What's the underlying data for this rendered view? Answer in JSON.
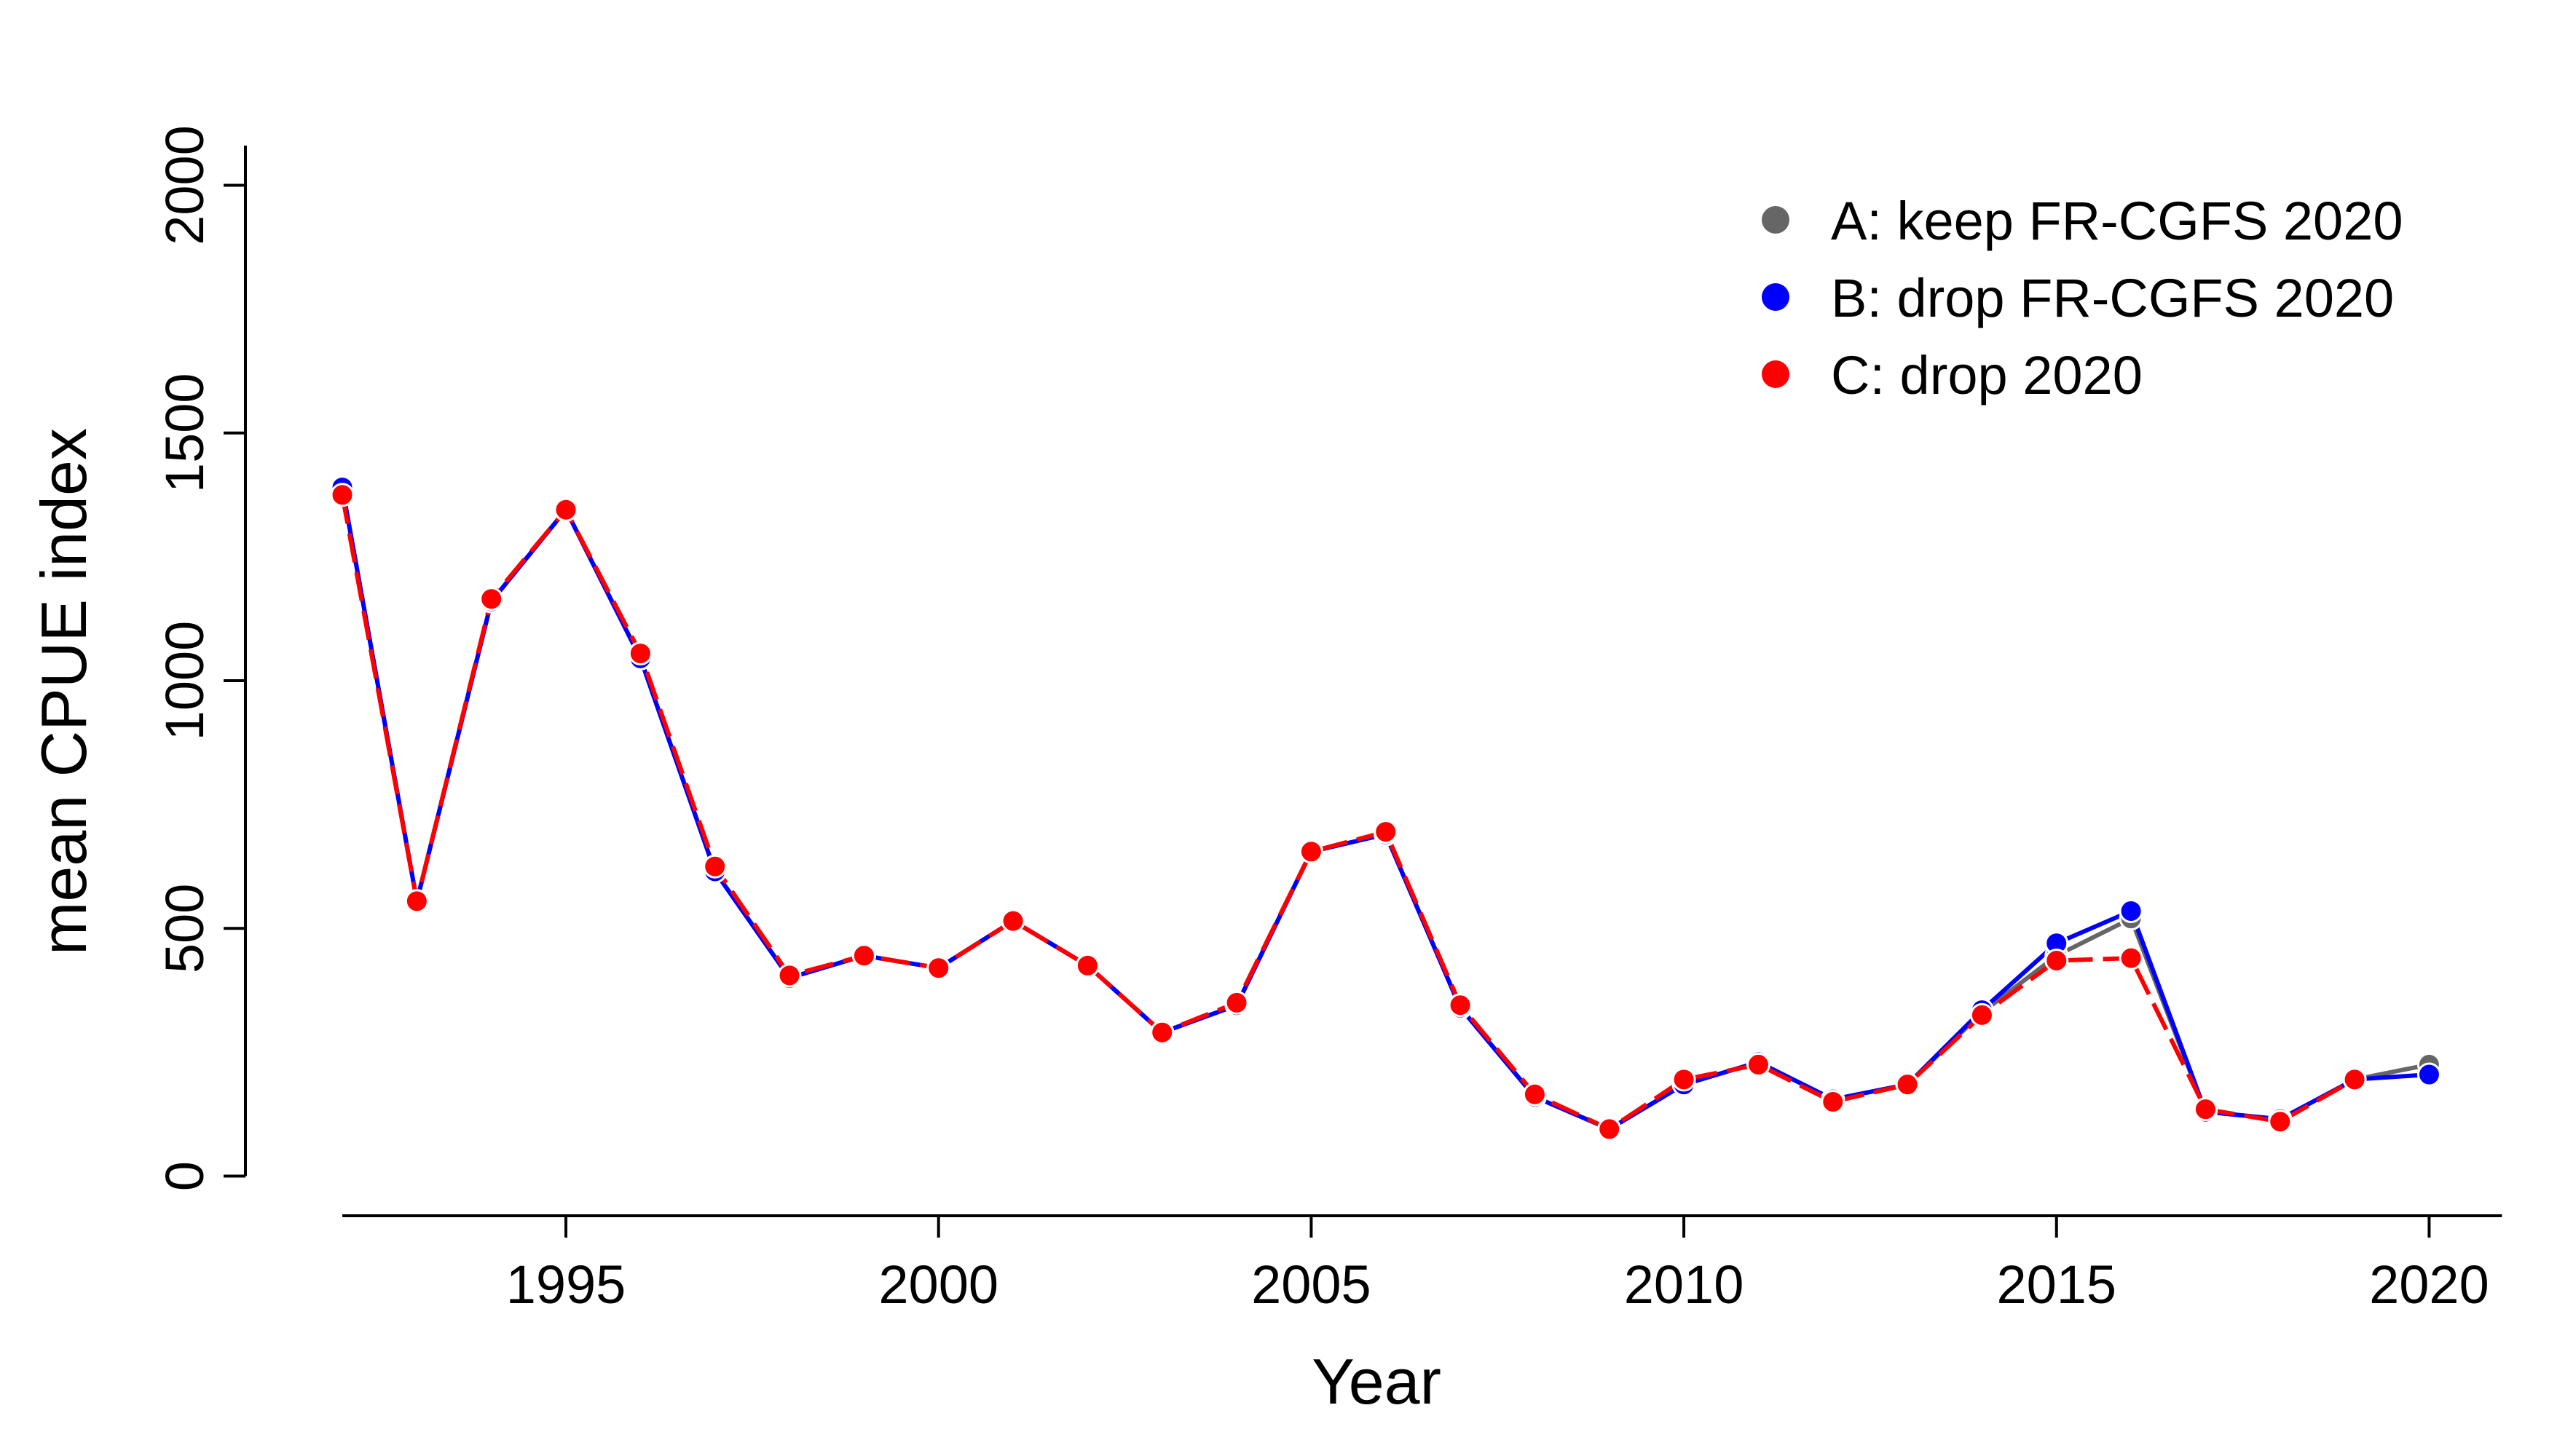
{
  "chart_data": {
    "type": "line",
    "title": "",
    "xlabel": "Year",
    "ylabel": "mean CPUE index",
    "xlim": [
      1990.7,
      2021.1
    ],
    "ylim": [
      -80,
      2080
    ],
    "xticks": [
      1995,
      2000,
      2005,
      2010,
      2015,
      2020
    ],
    "yticks": [
      0,
      500,
      1000,
      1500,
      2000
    ],
    "x_tick_labels": [
      "1995",
      "2000",
      "2005",
      "2010",
      "2015",
      "2020"
    ],
    "y_tick_labels": [
      "0",
      "500",
      "1000",
      "1500",
      "2000"
    ],
    "grid": false,
    "legend_position": "top-right",
    "x": [
      1992,
      1993,
      1994,
      1995,
      1996,
      1997,
      1998,
      1999,
      2000,
      2001,
      2002,
      2003,
      2004,
      2005,
      2006,
      2007,
      2008,
      2009,
      2010,
      2011,
      2012,
      2013,
      2014,
      2015,
      2016,
      2017,
      2018,
      2019,
      2020
    ],
    "series": [
      {
        "name": "A: keep FR-CGFS 2020",
        "color": "#666666",
        "dashed": false,
        "values": [
          1390,
          555,
          1160,
          1345,
          1045,
          615,
          400,
          445,
          420,
          515,
          425,
          290,
          345,
          655,
          690,
          340,
          160,
          95,
          185,
          230,
          155,
          185,
          330,
          445,
          520,
          130,
          115,
          195,
          225
        ]
      },
      {
        "name": "B: drop FR-CGFS 2020",
        "color": "#0000ff",
        "dashed": false,
        "values": [
          1390,
          555,
          1160,
          1345,
          1045,
          615,
          400,
          445,
          420,
          515,
          425,
          290,
          345,
          655,
          690,
          340,
          160,
          95,
          185,
          230,
          155,
          185,
          335,
          470,
          535,
          130,
          115,
          195,
          205
        ]
      },
      {
        "name": "C: drop 2020",
        "color": "#ff0000",
        "dashed": true,
        "values": [
          1375,
          555,
          1165,
          1345,
          1055,
          625,
          405,
          445,
          420,
          515,
          425,
          290,
          350,
          655,
          695,
          345,
          165,
          95,
          195,
          225,
          150,
          185,
          325,
          435,
          440,
          135,
          110,
          195,
          null
        ]
      }
    ]
  }
}
